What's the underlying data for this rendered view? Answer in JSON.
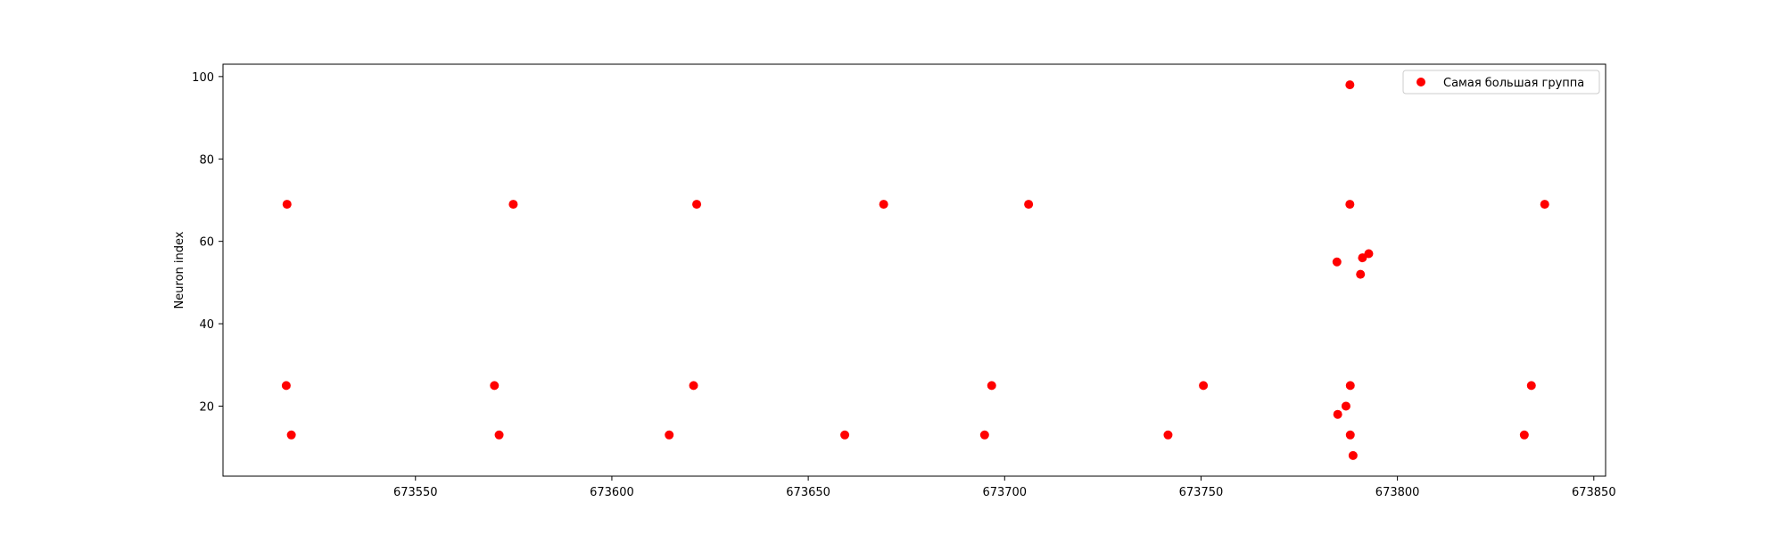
{
  "chart_data": {
    "type": "scatter",
    "title": "",
    "xlabel": "",
    "ylabel": "Neuron index",
    "xlim": [
      673501,
      673853
    ],
    "ylim": [
      3,
      103
    ],
    "xticks": [
      673550,
      673600,
      673650,
      673700,
      673750,
      673800,
      673850
    ],
    "yticks": [
      20,
      40,
      60,
      80,
      100
    ],
    "grid": false,
    "legend": {
      "position": "top-right"
    },
    "series": [
      {
        "name": "Самая большая группа",
        "color": "#ff0000",
        "marker": "circle",
        "points": [
          {
            "x": 673517.3,
            "y": 69
          },
          {
            "x": 673517.1,
            "y": 25
          },
          {
            "x": 673518.4,
            "y": 13
          },
          {
            "x": 673570.1,
            "y": 25
          },
          {
            "x": 673571.3,
            "y": 13
          },
          {
            "x": 673574.9,
            "y": 69
          },
          {
            "x": 673614.6,
            "y": 13
          },
          {
            "x": 673620.8,
            "y": 25
          },
          {
            "x": 673621.6,
            "y": 69
          },
          {
            "x": 673659.3,
            "y": 13
          },
          {
            "x": 673669.2,
            "y": 69
          },
          {
            "x": 673694.9,
            "y": 13
          },
          {
            "x": 673696.7,
            "y": 25
          },
          {
            "x": 673706.1,
            "y": 69
          },
          {
            "x": 673741.6,
            "y": 13
          },
          {
            "x": 673750.6,
            "y": 25
          },
          {
            "x": 673784.6,
            "y": 55
          },
          {
            "x": 673784.8,
            "y": 18
          },
          {
            "x": 673786.9,
            "y": 20
          },
          {
            "x": 673787.9,
            "y": 98
          },
          {
            "x": 673787.9,
            "y": 69
          },
          {
            "x": 673788.0,
            "y": 25
          },
          {
            "x": 673788.0,
            "y": 13
          },
          {
            "x": 673788.7,
            "y": 8
          },
          {
            "x": 673790.6,
            "y": 52
          },
          {
            "x": 673791.1,
            "y": 56
          },
          {
            "x": 673792.7,
            "y": 57
          },
          {
            "x": 673832.3,
            "y": 13
          },
          {
            "x": 673834.1,
            "y": 25
          },
          {
            "x": 673837.5,
            "y": 69
          }
        ]
      }
    ]
  }
}
